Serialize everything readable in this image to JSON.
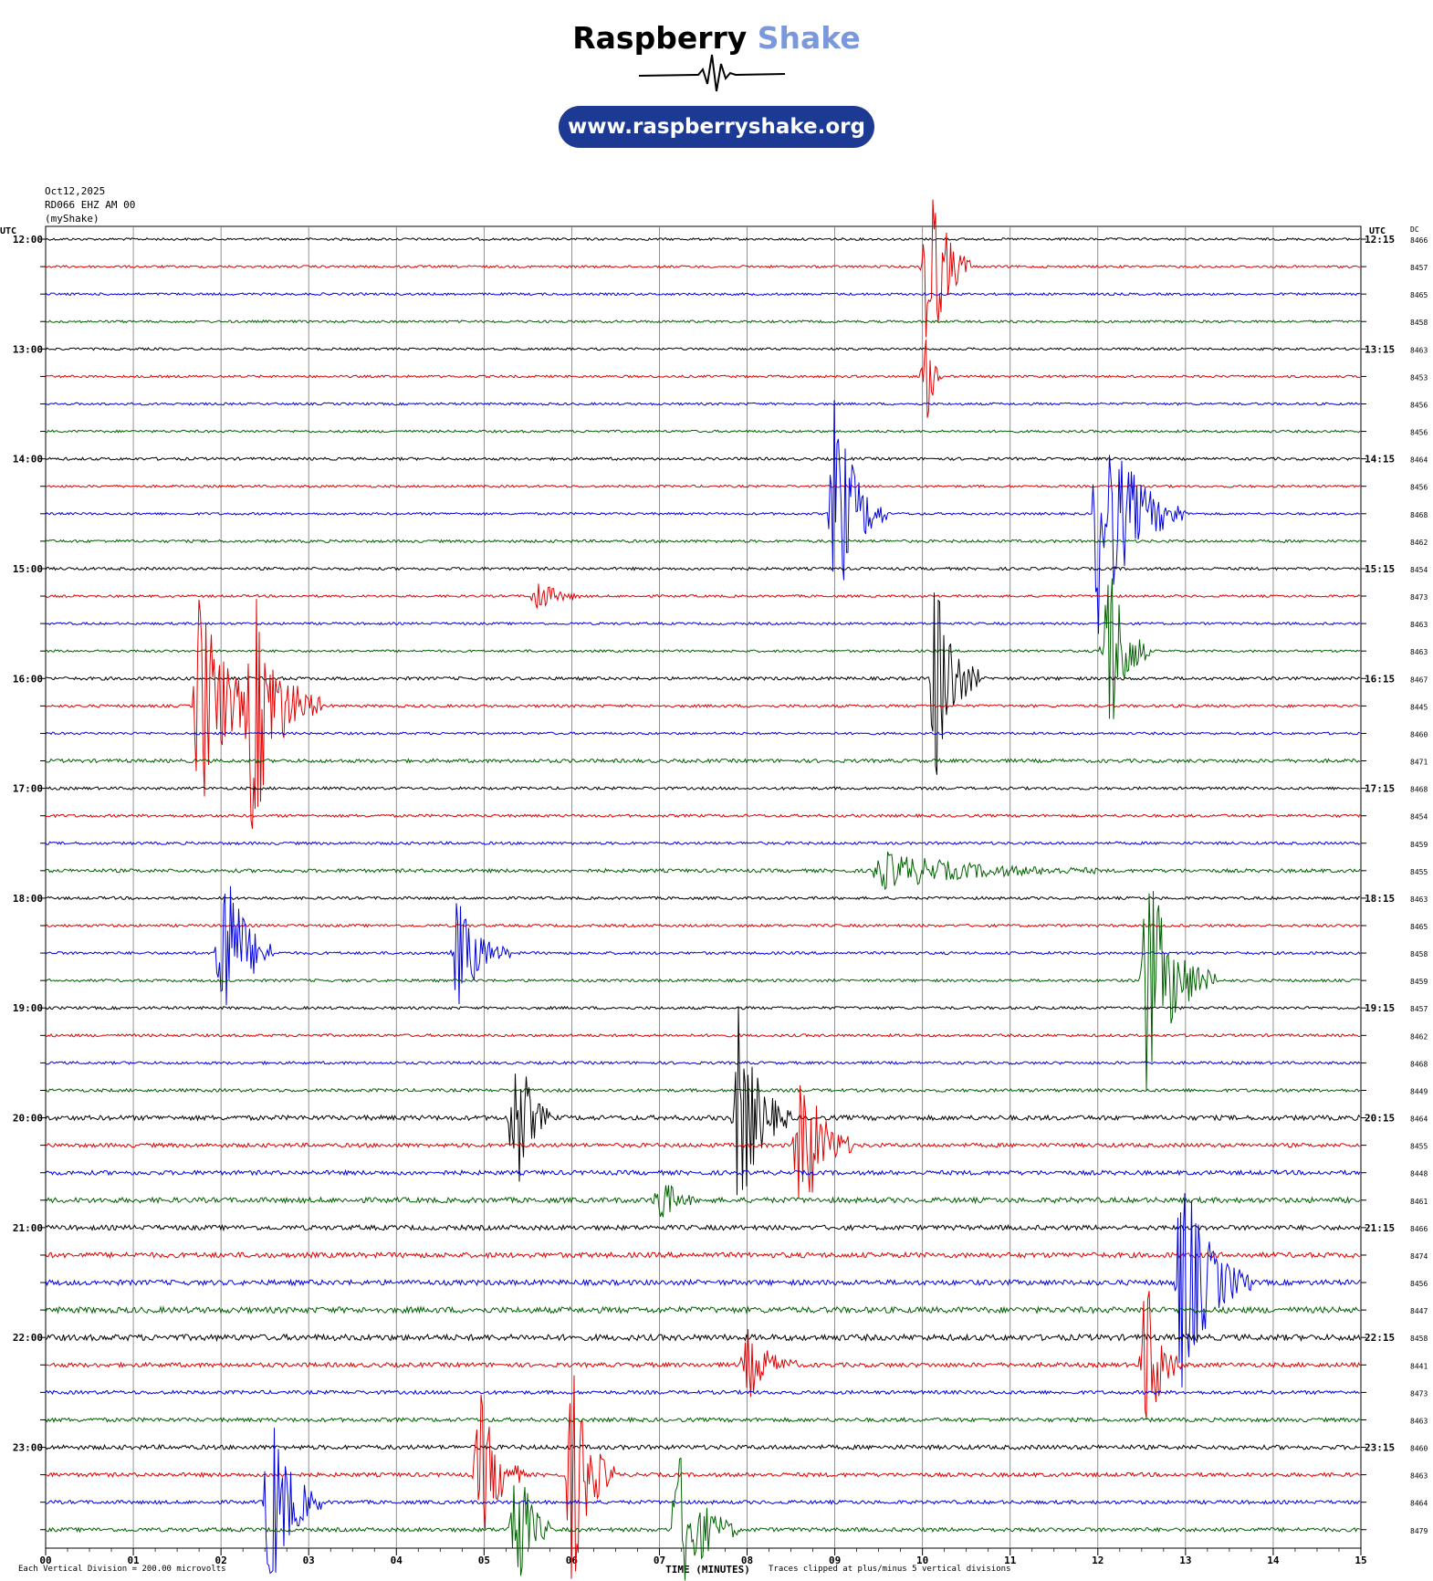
{
  "header": {
    "brand_main": "Raspberry",
    "brand_accent": "Shake",
    "url": "www.raspberryshake.org",
    "brand_color": "#7b98dc",
    "pill_color": "#1c3a94"
  },
  "meta": {
    "date": "Oct12,2025",
    "station": "RD066 EHZ AM 00",
    "network": "(myShake)"
  },
  "chart_data": {
    "type": "line",
    "title": "",
    "xlabel": "TIME (MINUTES)",
    "left_axis_label": "UTC",
    "right_axis_label": "UTC",
    "dc_label": "DC",
    "xlim": [
      0,
      15
    ],
    "x_ticks": [
      "00",
      "01",
      "02",
      "03",
      "04",
      "05",
      "06",
      "07",
      "08",
      "09",
      "10",
      "11",
      "12",
      "13",
      "14",
      "15"
    ],
    "left_hour_labels": [
      "12:00",
      "13:00",
      "14:00",
      "15:00",
      "16:00",
      "17:00",
      "18:00",
      "19:00",
      "20:00",
      "21:00",
      "22:00",
      "23:00"
    ],
    "right_hour_labels": [
      "12:15",
      "13:15",
      "14:15",
      "15:15",
      "16:15",
      "17:15",
      "18:15",
      "19:15",
      "20:15",
      "21:15",
      "22:15",
      "23:15"
    ],
    "trace_colors": [
      "#000000",
      "#e00000",
      "#0000e0",
      "#006000"
    ],
    "dc_values": [
      8466,
      8457,
      8465,
      8458,
      8463,
      8453,
      8456,
      8456,
      8464,
      8456,
      8468,
      8462,
      8454,
      8473,
      8463,
      8463,
      8467,
      8445,
      8460,
      8471,
      8468,
      8454,
      8459,
      8455,
      8463,
      8465,
      8458,
      8459,
      8457,
      8462,
      8468,
      8449,
      8464,
      8455,
      8448,
      8461,
      8466,
      8474,
      8456,
      8447,
      8458,
      8441,
      8473,
      8463,
      8460,
      8463,
      8464,
      8479
    ],
    "vertical_division_note": "Each Vertical Division =  200.00 microvolts",
    "clip_note": "Traces clipped at plus/minus 5 vertical divisions",
    "noise_levels": [
      0.6,
      0.6,
      0.6,
      0.6,
      0.6,
      0.6,
      0.6,
      0.6,
      0.7,
      0.6,
      0.6,
      0.7,
      0.7,
      0.6,
      0.6,
      0.6,
      0.8,
      0.7,
      0.6,
      0.9,
      0.7,
      0.7,
      0.7,
      0.9,
      0.7,
      0.7,
      0.7,
      0.7,
      0.7,
      0.7,
      0.7,
      0.8,
      1.2,
      1.0,
      1.1,
      1.3,
      1.2,
      1.3,
      1.3,
      1.5,
      1.5,
      1.1,
      0.9,
      1.0,
      1.1,
      1.0,
      0.9,
      1.0
    ],
    "events": [
      {
        "trace": 1,
        "minute": 10.05,
        "amplitude": 5.0,
        "duration": 0.5
      },
      {
        "trace": 5,
        "minute": 10.05,
        "amplitude": 2.0,
        "duration": 0.2
      },
      {
        "trace": 10,
        "minute": 9.0,
        "amplitude": 5.0,
        "duration": 0.6
      },
      {
        "trace": 10,
        "minute": 12.0,
        "amplitude": 5.0,
        "duration": 1.0
      },
      {
        "trace": 13,
        "minute": 5.6,
        "amplitude": 0.8,
        "duration": 0.5
      },
      {
        "trace": 15,
        "minute": 12.1,
        "amplitude": 5.0,
        "duration": 0.5
      },
      {
        "trace": 16,
        "minute": 10.15,
        "amplitude": 5.0,
        "duration": 0.5
      },
      {
        "trace": 17,
        "minute": 1.75,
        "amplitude": 5.0,
        "duration": 0.8
      },
      {
        "trace": 17,
        "minute": 2.35,
        "amplitude": 5.0,
        "duration": 0.8
      },
      {
        "trace": 23,
        "minute": 9.5,
        "amplitude": 0.8,
        "duration": 2.5
      },
      {
        "trace": 26,
        "minute": 2.0,
        "amplitude": 5.0,
        "duration": 0.6
      },
      {
        "trace": 26,
        "minute": 4.7,
        "amplitude": 2.5,
        "duration": 0.6
      },
      {
        "trace": 27,
        "minute": 12.55,
        "amplitude": 5.0,
        "duration": 0.8
      },
      {
        "trace": 32,
        "minute": 5.35,
        "amplitude": 4.0,
        "duration": 0.4
      },
      {
        "trace": 32,
        "minute": 7.9,
        "amplitude": 4.5,
        "duration": 0.6
      },
      {
        "trace": 33,
        "minute": 8.6,
        "amplitude": 4.0,
        "duration": 0.6
      },
      {
        "trace": 35,
        "minute": 7.0,
        "amplitude": 1.2,
        "duration": 0.4
      },
      {
        "trace": 38,
        "minute": 12.95,
        "amplitude": 5.0,
        "duration": 0.8
      },
      {
        "trace": 41,
        "minute": 8.0,
        "amplitude": 1.5,
        "duration": 0.6
      },
      {
        "trace": 41,
        "minute": 12.55,
        "amplitude": 4.0,
        "duration": 0.4
      },
      {
        "trace": 45,
        "minute": 4.95,
        "amplitude": 3.5,
        "duration": 0.5
      },
      {
        "trace": 45,
        "minute": 6.0,
        "amplitude": 5.0,
        "duration": 0.5
      },
      {
        "trace": 46,
        "minute": 2.55,
        "amplitude": 4.5,
        "duration": 0.6
      },
      {
        "trace": 47,
        "minute": 5.35,
        "amplitude": 4.0,
        "duration": 0.4
      },
      {
        "trace": 47,
        "minute": 7.2,
        "amplitude": 3.5,
        "duration": 0.7
      }
    ]
  }
}
